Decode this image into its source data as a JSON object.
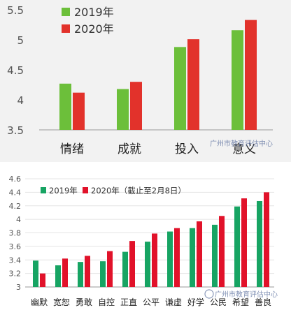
{
  "watermark": {
    "text": "广州市教育评估中心"
  },
  "colors": {
    "y2019": "#6cbf3a",
    "y2020": "#e2322b",
    "y2019_b": "#17a463",
    "y2020_b": "#e1122a"
  },
  "chart_data": [
    {
      "type": "bar",
      "categories": [
        "情绪",
        "成就",
        "投入",
        "意义"
      ],
      "series": [
        {
          "name": "2019年",
          "values": [
            4.27,
            4.18,
            4.88,
            5.16
          ]
        },
        {
          "name": "2020年",
          "values": [
            4.12,
            4.3,
            5.01,
            5.33
          ]
        }
      ],
      "ylim": [
        3.5,
        5.5
      ],
      "yticks": [
        "3.5",
        "4",
        "4.5",
        "5",
        "5.5"
      ],
      "legend": "top-left",
      "grid": false
    },
    {
      "type": "bar",
      "categories": [
        "幽默",
        "宽恕",
        "勇敢",
        "自控",
        "正直",
        "公平",
        "谦虚",
        "好学",
        "公民",
        "希望",
        "善良"
      ],
      "series": [
        {
          "name": "2019年",
          "values": [
            3.39,
            3.32,
            3.37,
            3.38,
            3.52,
            3.67,
            3.82,
            3.87,
            3.92,
            4.19,
            4.27
          ]
        },
        {
          "name": "2020年（截止至2月8日）",
          "values": [
            3.2,
            3.42,
            3.46,
            3.53,
            3.68,
            3.79,
            3.87,
            3.97,
            4.05,
            4.31,
            4.4
          ]
        }
      ],
      "ylim": [
        3.0,
        4.6
      ],
      "yticks": [
        "3",
        "3.2",
        "3.4",
        "3.6",
        "3.8",
        "4",
        "4.2",
        "4.4",
        "4.6"
      ],
      "legend": "top-left",
      "grid": true
    }
  ]
}
